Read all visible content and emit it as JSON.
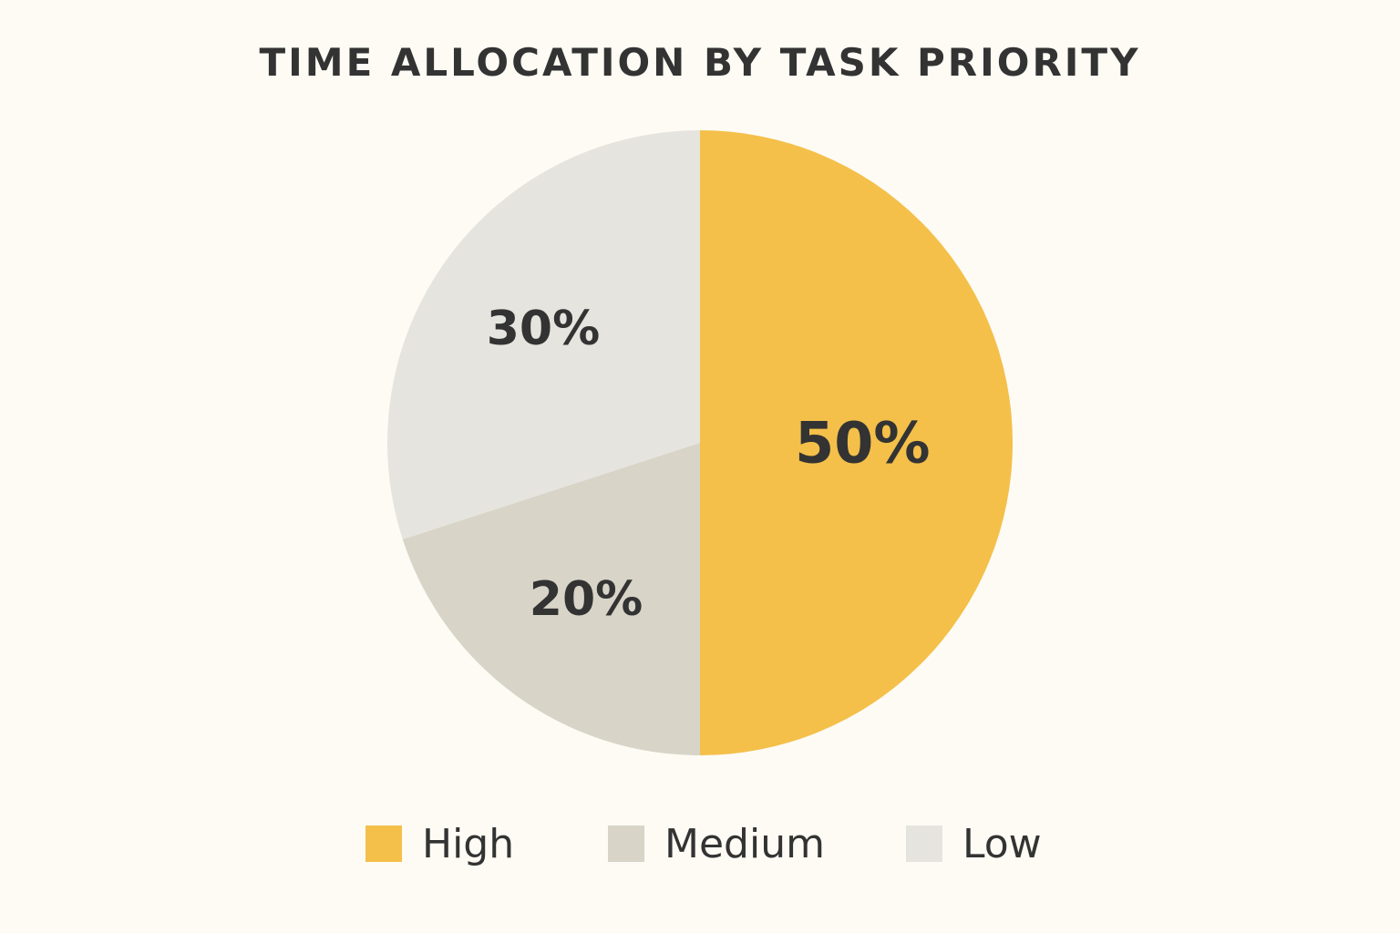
{
  "chart_data": {
    "type": "pie",
    "title": "TIME ALLOCATION BY TASK PRIORITY",
    "categories": [
      "High",
      "Medium",
      "Low"
    ],
    "values": [
      50,
      20,
      30
    ],
    "value_labels": [
      "50%",
      "20%",
      "30%"
    ],
    "colors": [
      "#f4c04a",
      "#d8d4c8",
      "#e6e4de"
    ],
    "legend_position": "bottom"
  }
}
